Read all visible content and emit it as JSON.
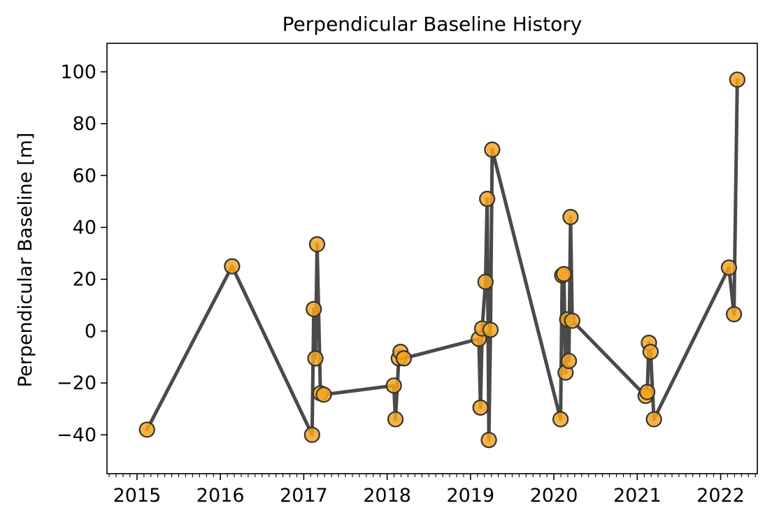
{
  "chart_data": {
    "type": "line",
    "title": "Perpendicular Baseline History",
    "xlabel": "",
    "ylabel": "Perpendicular Baseline [m]",
    "xlim": [
      2014.64,
      2022.44
    ],
    "ylim": [
      -55,
      111
    ],
    "x_ticks": [
      2015,
      2016,
      2017,
      2018,
      2019,
      2020,
      2021,
      2022
    ],
    "x_tick_labels": [
      "2015",
      "2016",
      "2017",
      "2018",
      "2019",
      "2020",
      "2021",
      "2022"
    ],
    "y_ticks": [
      -40,
      -20,
      0,
      20,
      40,
      60,
      80,
      100
    ],
    "y_tick_labels": [
      "−40",
      "−20",
      "0",
      "20",
      "40",
      "60",
      "80",
      "100"
    ],
    "grid": false,
    "line_color": "#4a4a4a",
    "marker_color": "#f5a623",
    "marker_edge_color": "#333333",
    "series": [
      {
        "x": [
          2015.12,
          2016.14,
          2017.1,
          2017.12,
          2017.14,
          2017.16,
          2017.2,
          2017.24,
          2018.08,
          2018.1,
          2018.14,
          2018.16,
          2018.2,
          2019.1,
          2019.12,
          2019.14,
          2019.18,
          2019.2,
          2019.22,
          2019.24,
          2019.26,
          2020.08,
          2020.1,
          2020.12,
          2020.14,
          2020.16,
          2020.18,
          2020.2,
          2020.22,
          2021.1,
          2021.12,
          2021.14,
          2021.16,
          2021.2,
          2022.1,
          2022.16,
          2022.2
        ],
        "y": [
          -38,
          25,
          -40,
          8.5,
          -10.5,
          33.5,
          -24,
          -24.5,
          -21,
          -34,
          -10.5,
          -8,
          -10.5,
          -3,
          -29.5,
          1,
          19,
          51,
          -42,
          0.5,
          70,
          -34,
          21.5,
          22,
          -16,
          4.5,
          -11.5,
          44,
          4,
          -25,
          -23.5,
          -4.5,
          -8,
          -34,
          24.5,
          6.5,
          97
        ]
      }
    ]
  }
}
